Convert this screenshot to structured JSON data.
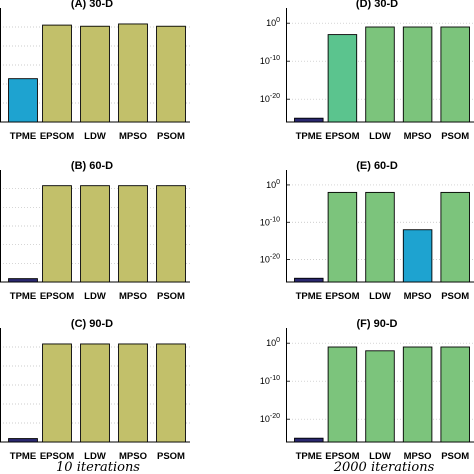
{
  "footer": {
    "left": "10 iterations",
    "right": "2000 iterations"
  },
  "colors": {
    "olive": "#c2c06a",
    "green": "#7cc47c",
    "teal": "#5bc48e",
    "cyan": "#1ea3d0",
    "navy": "#2a2870",
    "edge": "#000000"
  },
  "chart_data": [
    {
      "type": "bar",
      "title": "(A) 30-D",
      "categories": [
        "TPME",
        "EPSOM",
        "LDW",
        "MPSO",
        "PSOM"
      ],
      "values": [
        0.38,
        0.85,
        0.84,
        0.86,
        0.84
      ],
      "ylim": [
        0,
        1
      ],
      "yscale": "linear",
      "yticklabels": [],
      "grid": "y",
      "bar_colors": [
        "cyan",
        "olive",
        "olive",
        "olive",
        "olive"
      ]
    },
    {
      "type": "bar",
      "title": "(B) 60-D",
      "categories": [
        "TPME",
        "EPSOM",
        "LDW",
        "MPSO",
        "PSOM"
      ],
      "values": [
        0.03,
        0.86,
        0.86,
        0.86,
        0.86
      ],
      "ylim": [
        0,
        1
      ],
      "yscale": "linear",
      "yticklabels": [],
      "grid": "y",
      "bar_colors": [
        "navy",
        "olive",
        "olive",
        "olive",
        "olive"
      ]
    },
    {
      "type": "bar",
      "title": "(C) 90-D",
      "categories": [
        "TPME",
        "EPSOM",
        "LDW",
        "MPSO",
        "PSOM"
      ],
      "values": [
        0.03,
        0.86,
        0.86,
        0.86,
        0.86
      ],
      "ylim": [
        0,
        1
      ],
      "yscale": "linear",
      "yticklabels": [],
      "grid": "y",
      "bar_colors": [
        "navy",
        "olive",
        "olive",
        "olive",
        "olive"
      ]
    },
    {
      "type": "bar",
      "title": "(D) 30-D",
      "categories": [
        "TPME",
        "EPSOM",
        "LDW",
        "MPSO",
        "PSOM"
      ],
      "values": [
        1e-25,
        0.001,
        0.1,
        0.1,
        0.1
      ],
      "ylim": [
        1e-26,
        10000.0
      ],
      "yscale": "log",
      "yticks": [
        1,
        1e-10,
        1e-20
      ],
      "yticklabels": [
        {
          "base": "10",
          "exp": "0"
        },
        {
          "base": "10",
          "exp": "-10"
        },
        {
          "base": "10",
          "exp": "-20"
        }
      ],
      "grid": "y",
      "bar_colors": [
        "navy",
        "teal",
        "green",
        "green",
        "green"
      ]
    },
    {
      "type": "bar",
      "title": "(E) 60-D",
      "categories": [
        "TPME",
        "EPSOM",
        "LDW",
        "MPSO",
        "PSOM"
      ],
      "values": [
        1e-25,
        0.01,
        0.01,
        1e-12,
        0.01
      ],
      "ylim": [
        1e-26,
        10000.0
      ],
      "yscale": "log",
      "yticks": [
        1,
        1e-10,
        1e-20
      ],
      "yticklabels": [
        {
          "base": "10",
          "exp": "0"
        },
        {
          "base": "10",
          "exp": "-10"
        },
        {
          "base": "10",
          "exp": "-20"
        }
      ],
      "grid": "y",
      "bar_colors": [
        "navy",
        "green",
        "green",
        "cyan",
        "green"
      ]
    },
    {
      "type": "bar",
      "title": "(F) 90-D",
      "categories": [
        "TPME",
        "EPSOM",
        "LDW",
        "MPSO",
        "PSOM"
      ],
      "values": [
        1e-25,
        0.1,
        0.01,
        0.1,
        0.1
      ],
      "ylim": [
        1e-26,
        10000.0
      ],
      "yscale": "log",
      "yticks": [
        1,
        1e-10,
        1e-20
      ],
      "yticklabels": [
        {
          "base": "10",
          "exp": "0"
        },
        {
          "base": "10",
          "exp": "-10"
        },
        {
          "base": "10",
          "exp": "-20"
        }
      ],
      "grid": "y",
      "bar_colors": [
        "navy",
        "green",
        "green",
        "green",
        "green"
      ]
    }
  ]
}
